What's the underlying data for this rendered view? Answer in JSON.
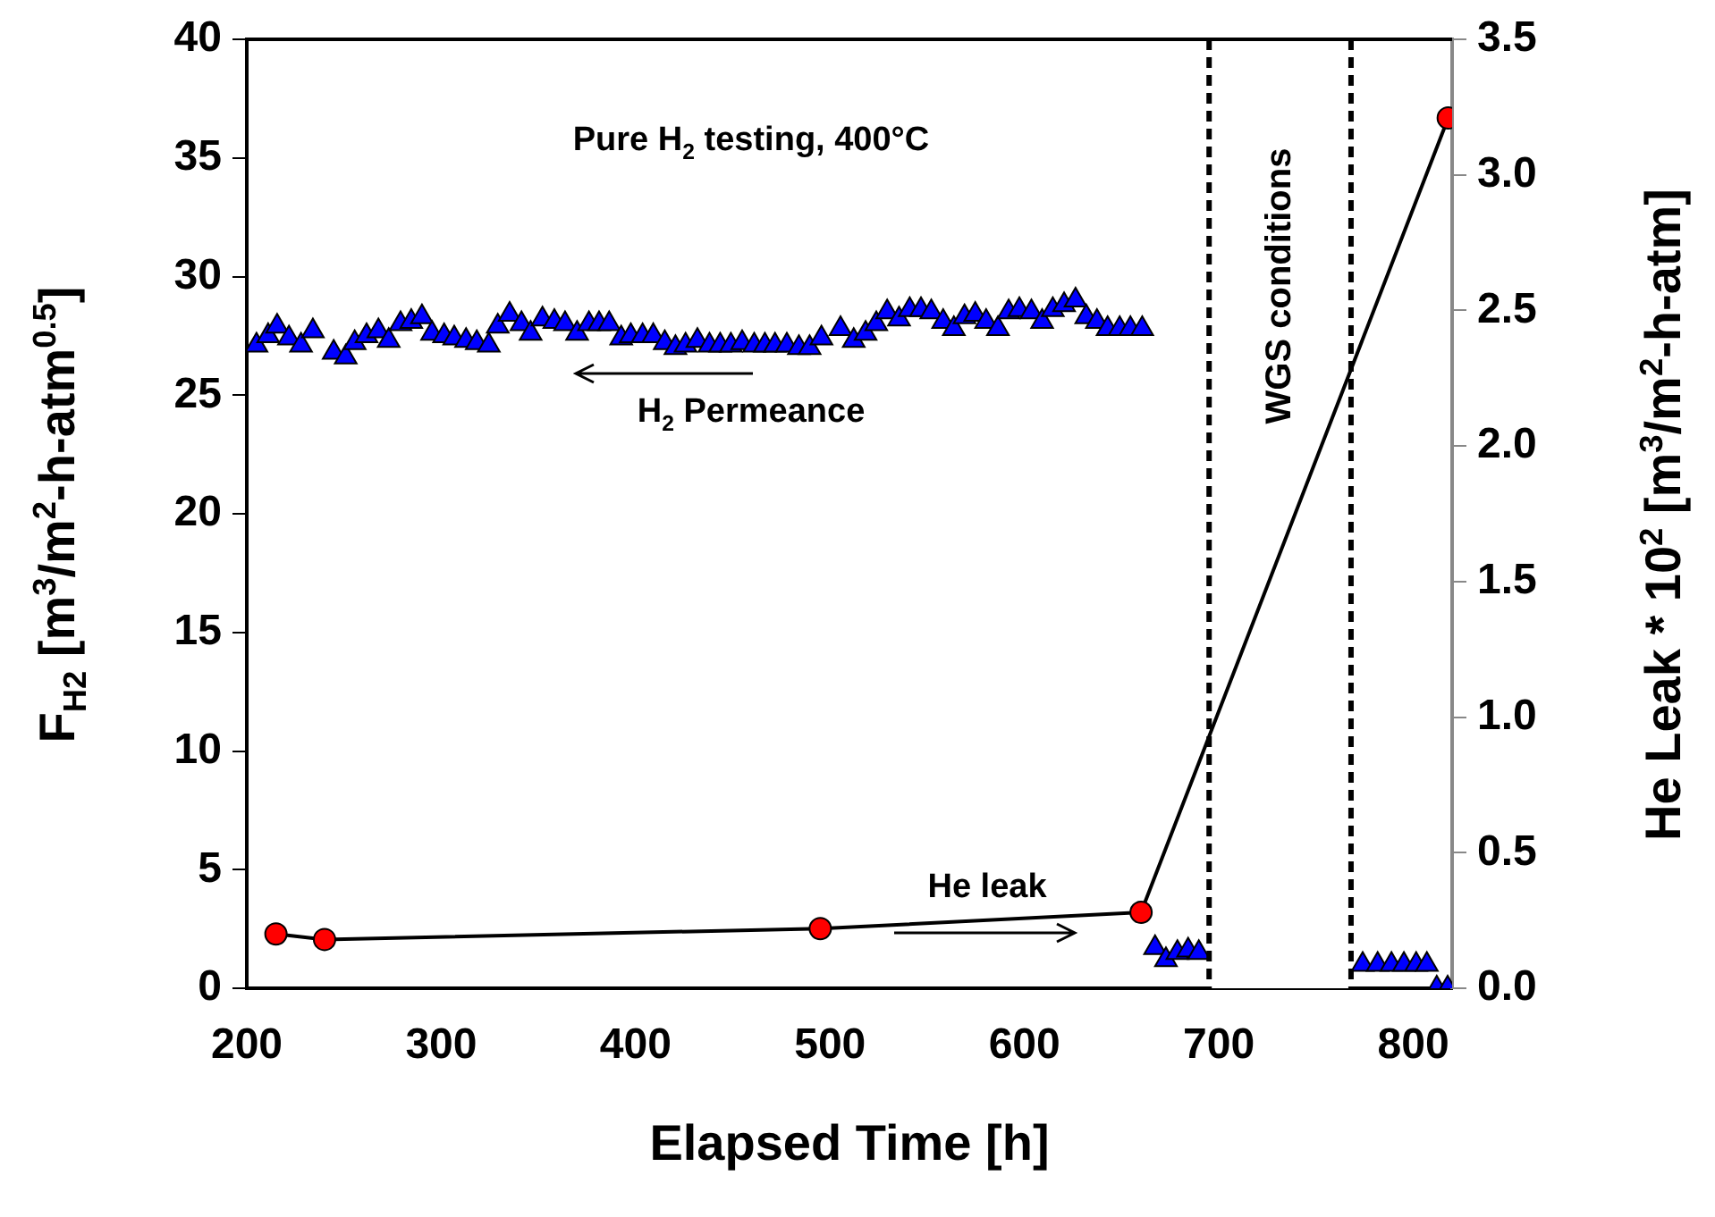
{
  "chart_data": {
    "type": "scatter",
    "xlabel": "Elapsed Time [h]",
    "ylabel": "F$_{H2}$ [m$^{3}$/m$^{2}$-h-atm$^{0.5}$]",
    "y2label": "He Leak * 10$^{2}$ [m$^{3}$/m$^{2}$-h-atm]",
    "xlim": [
      200,
      820
    ],
    "xticks": [
      200,
      300,
      400,
      500,
      600,
      700,
      800
    ],
    "ylim": [
      0,
      40
    ],
    "yticks": [
      0,
      5,
      10,
      15,
      20,
      25,
      30,
      35,
      40
    ],
    "y2lim": [
      0,
      3.5
    ],
    "y2ticks": [
      {
        "value": 0,
        "label": "0.0"
      },
      {
        "value": 0.5,
        "label": "0.5"
      },
      {
        "value": 1,
        "label": "1.0"
      },
      {
        "value": 1.5,
        "label": "1.5"
      },
      {
        "value": 2,
        "label": "2.0"
      },
      {
        "value": 2.5,
        "label": "2.5"
      },
      {
        "value": 3,
        "label": "3.0"
      },
      {
        "value": 3.5,
        "label": "3.5"
      }
    ],
    "grid": false,
    "legend": false,
    "series": [
      {
        "marker": "triangle",
        "color": "#0000ff",
        "x": [
          205,
          211,
          215.6,
          221.7,
          227.9,
          234,
          244.7,
          250.9,
          255.5,
          261.6,
          267.7,
          273,
          279.1,
          284.6,
          290.1,
          295.3,
          301.5,
          306.7,
          312.8,
          318.3,
          324.5,
          329.1,
          335.2,
          341.3,
          346,
          352.1,
          358.2,
          363.7,
          369.9,
          376,
          381.2,
          386.4,
          392.6,
          397.5,
          403.6,
          409.1,
          415,
          420.5,
          425.7,
          431.8,
          438,
          443.5,
          449,
          454.8,
          461,
          466.5,
          471.7,
          477.8,
          484,
          489.5,
          495.6,
          505.4,
          512.2,
          518.3,
          523.8,
          529.4,
          535.5,
          541,
          546.8,
          552.1,
          558.2,
          563.7,
          569.2,
          574.7,
          580.3,
          586.4,
          591.9,
          597.4,
          603.6,
          609.1,
          614.6,
          620.4,
          626.3,
          631.8,
          637.3,
          642.8,
          649,
          654.5,
          660.6,
          667.2,
          672.8,
          678.7,
          684.2,
          689.7,
          774,
          781.7,
          788.8,
          795.2,
          801.5,
          807,
          812.1,
          817.7
        ],
        "values": [
          27.1,
          27.5,
          27.9,
          27.4,
          27.1,
          27.7,
          26.8,
          26.6,
          27.2,
          27.5,
          27.7,
          27.3,
          28,
          28.1,
          28.3,
          27.6,
          27.5,
          27.4,
          27.3,
          27.2,
          27.1,
          27.9,
          28.4,
          28,
          27.6,
          28.2,
          28.1,
          28,
          27.6,
          28,
          28,
          28,
          27.4,
          27.5,
          27.5,
          27.5,
          27.2,
          27,
          27.1,
          27.3,
          27.1,
          27.1,
          27.1,
          27.2,
          27.1,
          27.1,
          27.1,
          27.1,
          27,
          27,
          27.4,
          27.8,
          27.3,
          27.6,
          28,
          28.5,
          28.2,
          28.6,
          28.6,
          28.5,
          28.1,
          27.8,
          28.3,
          28.4,
          28.1,
          27.8,
          28.5,
          28.6,
          28.5,
          28.1,
          28.6,
          28.8,
          29,
          28.3,
          28.1,
          27.8,
          27.8,
          27.8,
          27.8,
          1.7,
          1.2,
          1.5,
          1.6,
          1.5,
          1,
          1,
          1,
          1,
          1,
          1,
          0,
          0
        ]
      },
      {
        "type": "line",
        "axis": "y2",
        "marker": "circle",
        "color": "#ff0000",
        "line_style": "solid",
        "x": [
          215,
          240,
          495,
          660,
          818
        ],
        "values": [
          0.2,
          0.18,
          0.22,
          0.28,
          3.21
        ]
      }
    ],
    "ref_lines": [
      {
        "axis": "x",
        "value": 695,
        "color": "#000000",
        "line_style": "dashed"
      },
      {
        "axis": "x",
        "value": 768,
        "color": "#000000",
        "line_style": "dashed"
      }
    ],
    "bands": [
      {
        "axis": "x",
        "from": 695,
        "to": 768,
        "label": "WGS conditions",
        "color": "#ffffff"
      }
    ],
    "annotations": [
      "Pure H$_{2}$ testing, 400°C",
      "H$_{2}$ Permeance",
      "He leak"
    ]
  }
}
